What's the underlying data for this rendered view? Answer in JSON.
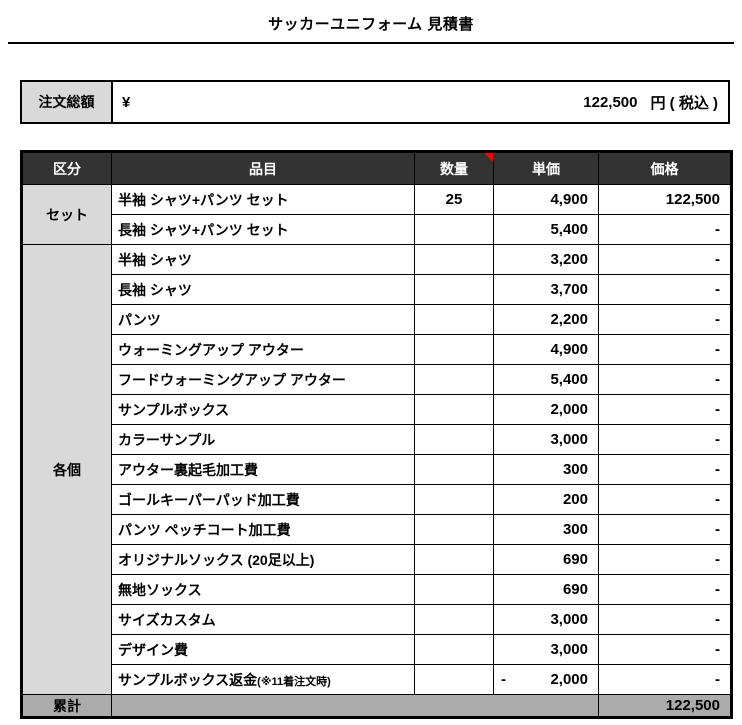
{
  "title": "サッカーユニフォーム 見積書",
  "order_total": {
    "label": "注文総額",
    "currency_symbol": "¥",
    "amount": "122,500",
    "suffix": "円 ( 税込 )"
  },
  "table": {
    "headers": [
      "区分",
      "品目",
      "数量",
      "単価",
      "価格"
    ],
    "comment_marker_on": "数量",
    "groups": [
      {
        "label": "セット",
        "items": [
          {
            "name": "半袖 シャツ+パンツ セット",
            "qty": "25",
            "unit_price": "4,900",
            "price": "122,500"
          },
          {
            "name": "長袖 シャツ+パンツ セット",
            "qty": "",
            "unit_price": "5,400",
            "price": "-"
          }
        ]
      },
      {
        "label": "各個",
        "items": [
          {
            "name": "半袖 シャツ",
            "qty": "",
            "unit_price": "3,200",
            "price": "-"
          },
          {
            "name": "長袖 シャツ",
            "qty": "",
            "unit_price": "3,700",
            "price": "-"
          },
          {
            "name": "パンツ",
            "qty": "",
            "unit_price": "2,200",
            "price": "-"
          },
          {
            "name": "ウォーミングアップ アウター",
            "qty": "",
            "unit_price": "4,900",
            "price": "-"
          },
          {
            "name": "フードウォーミングアップ アウター",
            "qty": "",
            "unit_price": "5,400",
            "price": "-"
          },
          {
            "name": "サンプルボックス",
            "qty": "",
            "unit_price": "2,000",
            "price": "-"
          },
          {
            "name": "カラーサンプル",
            "qty": "",
            "unit_price": "3,000",
            "price": "-"
          },
          {
            "name": "アウター裏起毛加工費",
            "qty": "",
            "unit_price": "300",
            "price": "-"
          },
          {
            "name": "ゴールキーパーパッド加工費",
            "qty": "",
            "unit_price": "200",
            "price": "-"
          },
          {
            "name": "パンツ ペッチコート加工費",
            "qty": "",
            "unit_price": "300",
            "price": "-"
          },
          {
            "name": "オリジナルソックス (20足以上)",
            "qty": "",
            "unit_price": "690",
            "price": "-"
          },
          {
            "name": "無地ソックス",
            "qty": "",
            "unit_price": "690",
            "price": "-"
          },
          {
            "name": "サイズカスタム",
            "qty": "",
            "unit_price": "3,000",
            "price": "-"
          },
          {
            "name": "デザイン費",
            "qty": "",
            "unit_price": "3,000",
            "price": "-"
          },
          {
            "name": "サンプルボックス返金",
            "name_note": "(※11着注文時)",
            "qty": "",
            "unit_price": "2,000",
            "unit_price_sign": "-",
            "price": "-"
          }
        ]
      }
    ],
    "footer": {
      "label": "累計",
      "total": "122,500"
    }
  },
  "colors": {
    "header_bg": "#333333",
    "header_text": "#ffffff",
    "group_cell_bg": "#d9d9d9",
    "footer_bg": "#ababab",
    "border": "#000000",
    "comment_marker": "#ff0000"
  }
}
